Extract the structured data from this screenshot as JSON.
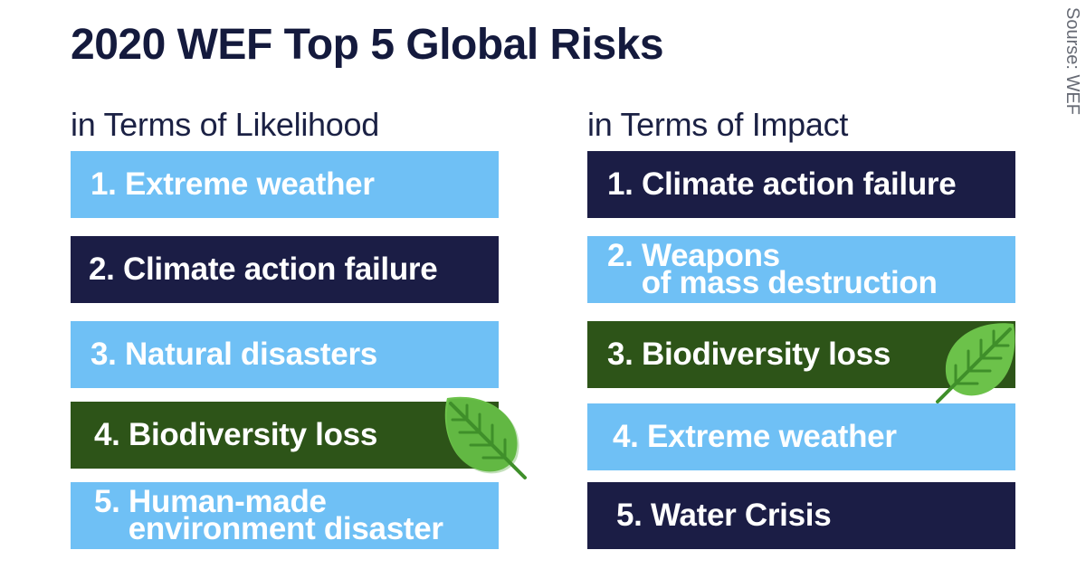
{
  "title": "2020 WEF Top 5 Global Risks",
  "source": "Sourse: WEF",
  "likelihood": {
    "heading": "in Terms of Likelihood",
    "items": [
      {
        "text": "1. Extreme weather",
        "color": "#6fc0f5"
      },
      {
        "text": "2. Climate action failure",
        "color": "#1b1d45"
      },
      {
        "text": "3. Natural disasters",
        "color": "#6fc0f5"
      },
      {
        "text": "4. Biodiversity loss",
        "color": "#2d5418",
        "icon": "leaf-icon"
      },
      {
        "text": "5. Human-made\n    environment disaster",
        "color": "#6fc0f5"
      }
    ]
  },
  "impact": {
    "heading": "in Terms of Impact",
    "items": [
      {
        "text": "1. Climate action failure",
        "color": "#1b1d45"
      },
      {
        "text": "2. Weapons\n    of mass destruction",
        "color": "#6fc0f5"
      },
      {
        "text": "3. Biodiversity loss",
        "color": "#2d5418",
        "icon": "leaf-icon"
      },
      {
        "text": "4. Extreme weather",
        "color": "#6fc0f5"
      },
      {
        "text": "5. Water Crisis",
        "color": "#1b1d45"
      }
    ]
  }
}
